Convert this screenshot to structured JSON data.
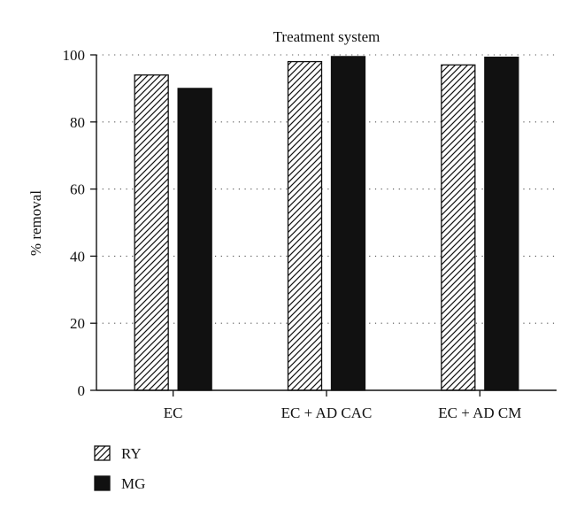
{
  "chart_data": {
    "type": "bar",
    "title": "Treatment system",
    "xlabel": "",
    "ylabel": "% removal",
    "categories": [
      "EC",
      "EC + AD CAC",
      "EC + AD CM"
    ],
    "series": [
      {
        "name": "RY",
        "values": [
          94,
          98,
          97
        ],
        "fill": "hatch"
      },
      {
        "name": "MG",
        "values": [
          90,
          99.5,
          99.3
        ],
        "fill": "#111111"
      }
    ],
    "ylim": [
      0,
      100
    ],
    "yticks": [
      0,
      20,
      40,
      60,
      80,
      100
    ],
    "grid": "horizontal dotted",
    "legend_position": "bottom-left"
  }
}
